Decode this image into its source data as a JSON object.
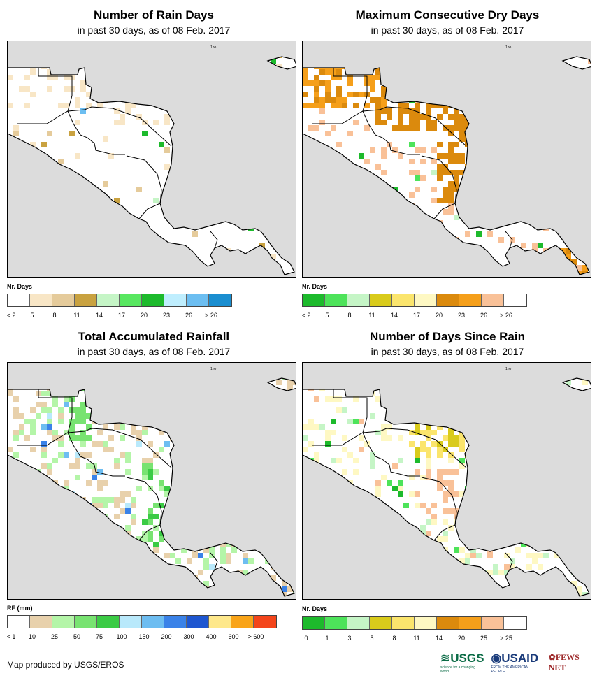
{
  "panels": [
    {
      "title": "Number of Rain Days",
      "subtitle": "in past 30 days, as of 08 Feb. 2017",
      "legend_name": "Nr. Days",
      "legend_colors": [
        "#ffffff",
        "#f8e6c6",
        "#e5cb9b",
        "#c9a240",
        "#c5f5c6",
        "#58e760",
        "#1dba2c",
        "#bfeefe",
        "#6cbef1",
        "#1a8ed0"
      ],
      "legend_ticks": [
        "< 2",
        "5",
        "8",
        "11",
        "14",
        "17",
        "20",
        "23",
        "26",
        "> 26"
      ],
      "pattern": "rain"
    },
    {
      "title": "Maximum Consecutive Dry Days",
      "subtitle": "in past 30 days, as of 08 Feb. 2017",
      "legend_name": "Nr. Days",
      "legend_colors": [
        "#1dba2c",
        "#4de35a",
        "#c5f5c6",
        "#d9cb1b",
        "#fbe56d",
        "#fef8c3",
        "#db8a0d",
        "#f59f1a",
        "#f9c198",
        "#ffffff"
      ],
      "legend_ticks": [
        "< 2",
        "5",
        "8",
        "11",
        "14",
        "17",
        "20",
        "23",
        "26",
        "> 26"
      ],
      "pattern": "dry"
    },
    {
      "title": "Total Accumulated Rainfall",
      "subtitle": "in past 30 days, as of 08 Feb. 2017",
      "legend_name": "RF (mm)",
      "legend_colors": [
        "#ffffff",
        "#e8d1ac",
        "#b4f5a8",
        "#78e371",
        "#3bcb45",
        "#b9e9fb",
        "#6dbdf1",
        "#3a82e8",
        "#1e56d0",
        "#fee88b",
        "#f9a418",
        "#f4451b"
      ],
      "legend_ticks": [
        "< 1",
        "10",
        "25",
        "50",
        "75",
        "100",
        "150",
        "200",
        "300",
        "400",
        "600",
        "> 600"
      ],
      "pattern": "total"
    },
    {
      "title": "Number of Days Since Rain",
      "subtitle": "in past 30 days, as of 08 Feb. 2017",
      "legend_name": "Nr. Days",
      "legend_colors": [
        "#1dba2c",
        "#4de35a",
        "#c5f5c6",
        "#d9cb1b",
        "#fbe56d",
        "#fef8c3",
        "#db8a0d",
        "#f59f1a",
        "#f9c198",
        "#ffffff"
      ],
      "legend_ticks": [
        "0",
        "1",
        "3",
        "5",
        "8",
        "11",
        "14",
        "20",
        "25",
        "> 25"
      ],
      "pattern": "since"
    }
  ],
  "map_tiny_label": "1ho",
  "credit": "Map produced by USGS/EROS",
  "logos": {
    "usgs": "USGS",
    "usgs_tag": "science for a changing world",
    "usaid": "USAID",
    "usaid_tag": "FROM THE AMERICAN PEOPLE",
    "fews": "FEWS NET"
  }
}
